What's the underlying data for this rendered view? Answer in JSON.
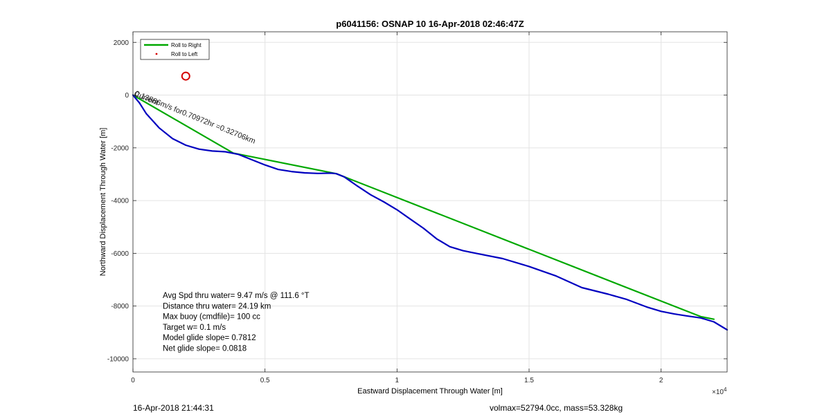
{
  "chart_data": {
    "type": "line",
    "title": "p6041156: OSNAP 10 16-Apr-2018 02:46:47Z",
    "xlabel": "Eastward Displacement Through Water [m]",
    "ylabel": "Northward Displacement Through Water [m]",
    "x_exponent_label": "×10",
    "x_exponent_power": "4",
    "xlim": [
      0,
      22500
    ],
    "ylim": [
      -10500,
      2400
    ],
    "grid": true,
    "legend_position": "top-left",
    "x_ticks": [
      {
        "value": 0,
        "label": "0"
      },
      {
        "value": 5000,
        "label": "0.5"
      },
      {
        "value": 10000,
        "label": "1"
      },
      {
        "value": 15000,
        "label": "1.5"
      },
      {
        "value": 20000,
        "label": "2"
      }
    ],
    "y_ticks": [
      {
        "value": 2000,
        "label": "2000"
      },
      {
        "value": 0,
        "label": "0"
      },
      {
        "value": -2000,
        "label": "-2000"
      },
      {
        "value": -4000,
        "label": "-4000"
      },
      {
        "value": -6000,
        "label": "-6000"
      },
      {
        "value": -8000,
        "label": "-8000"
      },
      {
        "value": -10000,
        "label": "-10000"
      }
    ],
    "series": [
      {
        "name": "Roll to Right",
        "color": "#00a800",
        "style": "line",
        "x": [
          0,
          3800,
          7700,
          21500,
          22000
        ],
        "y": [
          0,
          -2200,
          -2980,
          -8400,
          -8500
        ]
      },
      {
        "name": "Roll to Left",
        "color": "#d40000",
        "style": "point",
        "x": [],
        "y": []
      },
      {
        "color": "#0000c0",
        "style": "line",
        "x": [
          0,
          250,
          500,
          1000,
          1500,
          2000,
          2500,
          3000,
          3500,
          4000,
          4500,
          5000,
          5500,
          6000,
          6500,
          7000,
          7500,
          7700,
          8000,
          8500,
          9000,
          9500,
          10000,
          10500,
          11000,
          11500,
          12000,
          12500,
          13000,
          14000,
          15000,
          16000,
          17000,
          18000,
          18700,
          19500,
          20000,
          20500,
          21000,
          21500,
          22000,
          22500
        ],
        "y": [
          0,
          -300,
          -700,
          -1250,
          -1650,
          -1900,
          -2050,
          -2120,
          -2150,
          -2250,
          -2450,
          -2650,
          -2820,
          -2900,
          -2950,
          -2970,
          -2960,
          -2980,
          -3100,
          -3450,
          -3780,
          -4050,
          -4350,
          -4700,
          -5050,
          -5450,
          -5750,
          -5900,
          -6000,
          -6200,
          -6500,
          -6850,
          -7300,
          -7550,
          -7750,
          -8050,
          -8200,
          -8300,
          -8380,
          -8450,
          -8600,
          -8900
        ]
      }
    ],
    "markers": [
      {
        "x": 2000,
        "y": 720,
        "color": "#d40000"
      }
    ],
    "annotations": [
      {
        "text": "0.13886m/s for0.70972hr =0.32706km",
        "x": 50,
        "y": -10,
        "angle": 22
      },
      {
        "text": "Current",
        "x": 20,
        "y": -20,
        "angle": 22
      }
    ],
    "stats_lines": [
      "Avg Spd thru water=  9.47 m/s @ 111.6 °T",
      "Distance thru water= 24.19 km",
      "Max buoy (cmdfile)= 100 cc",
      "Target w= 0.1 m/s",
      "Model glide slope= 0.7812",
      "Net glide slope= 0.0818"
    ]
  },
  "footer": {
    "timestamp": "16-Apr-2018 21:44:31",
    "summary": "volmax=52794.0cc, mass=53.328kg"
  }
}
